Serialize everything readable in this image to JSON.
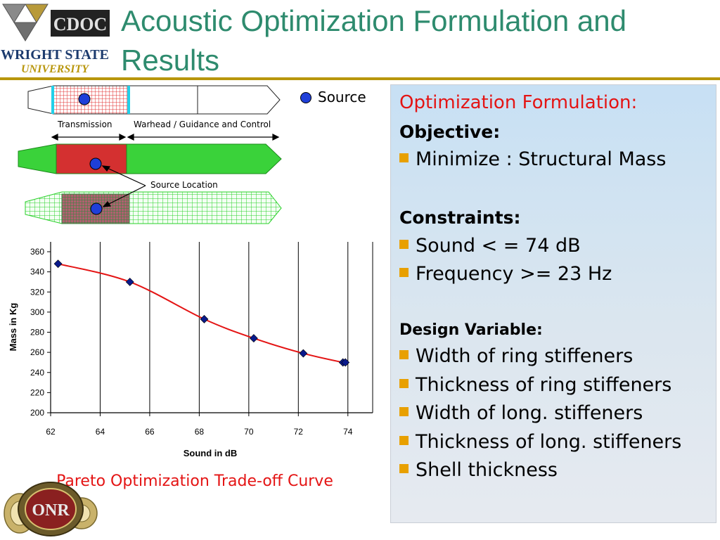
{
  "header": {
    "title_line1": "Acoustic Optimization Formulation and",
    "title_line2": "Results",
    "logo_text_top": "CDOC",
    "logo_text_mid": "WRIGHT STATE",
    "logo_text_bottom": "UNIVERSITY"
  },
  "diagram": {
    "legend_label": "Source",
    "label_transmission": "Transmission",
    "label_warhead": "Warhead / Guidance and Control",
    "label_source_location": "Source Location"
  },
  "panel": {
    "formulation_title": "Optimization Formulation:",
    "objective_heading": "Objective:",
    "objective_items": [
      "Minimize : Structural Mass"
    ],
    "constraints_heading": "Constraints:",
    "constraint_items": [
      "Sound < = 74 dB",
      "Frequency >= 23 Hz"
    ],
    "design_heading": "Design Variable:",
    "design_items": [
      "Width of ring stiffeners",
      "Thickness of ring stiffeners",
      "Width of long. stiffeners",
      "Thickness of long. stiffeners",
      "Shell thickness"
    ]
  },
  "chart_data": {
    "type": "scatter",
    "title": "",
    "xlabel": "Sound in dB",
    "ylabel": "Mass in Kg",
    "xlim": [
      62,
      75
    ],
    "ylim": [
      200,
      360
    ],
    "x_ticks": [
      62,
      64,
      66,
      68,
      70,
      72,
      74
    ],
    "y_ticks": [
      200,
      220,
      240,
      260,
      280,
      300,
      320,
      340,
      360
    ],
    "grid": "vertical",
    "series": [
      {
        "x": [
          62.3,
          65.2,
          68.2,
          70.2,
          72.2,
          73.8,
          73.9
        ],
        "y": [
          348,
          330,
          293,
          274,
          259,
          250,
          250
        ],
        "marker_color": "#0a1a8c",
        "line_color": "#e41414"
      }
    ],
    "caption": "Pareto Optimization Trade-off Curve"
  },
  "footer": {
    "onr_text": "ONR"
  }
}
